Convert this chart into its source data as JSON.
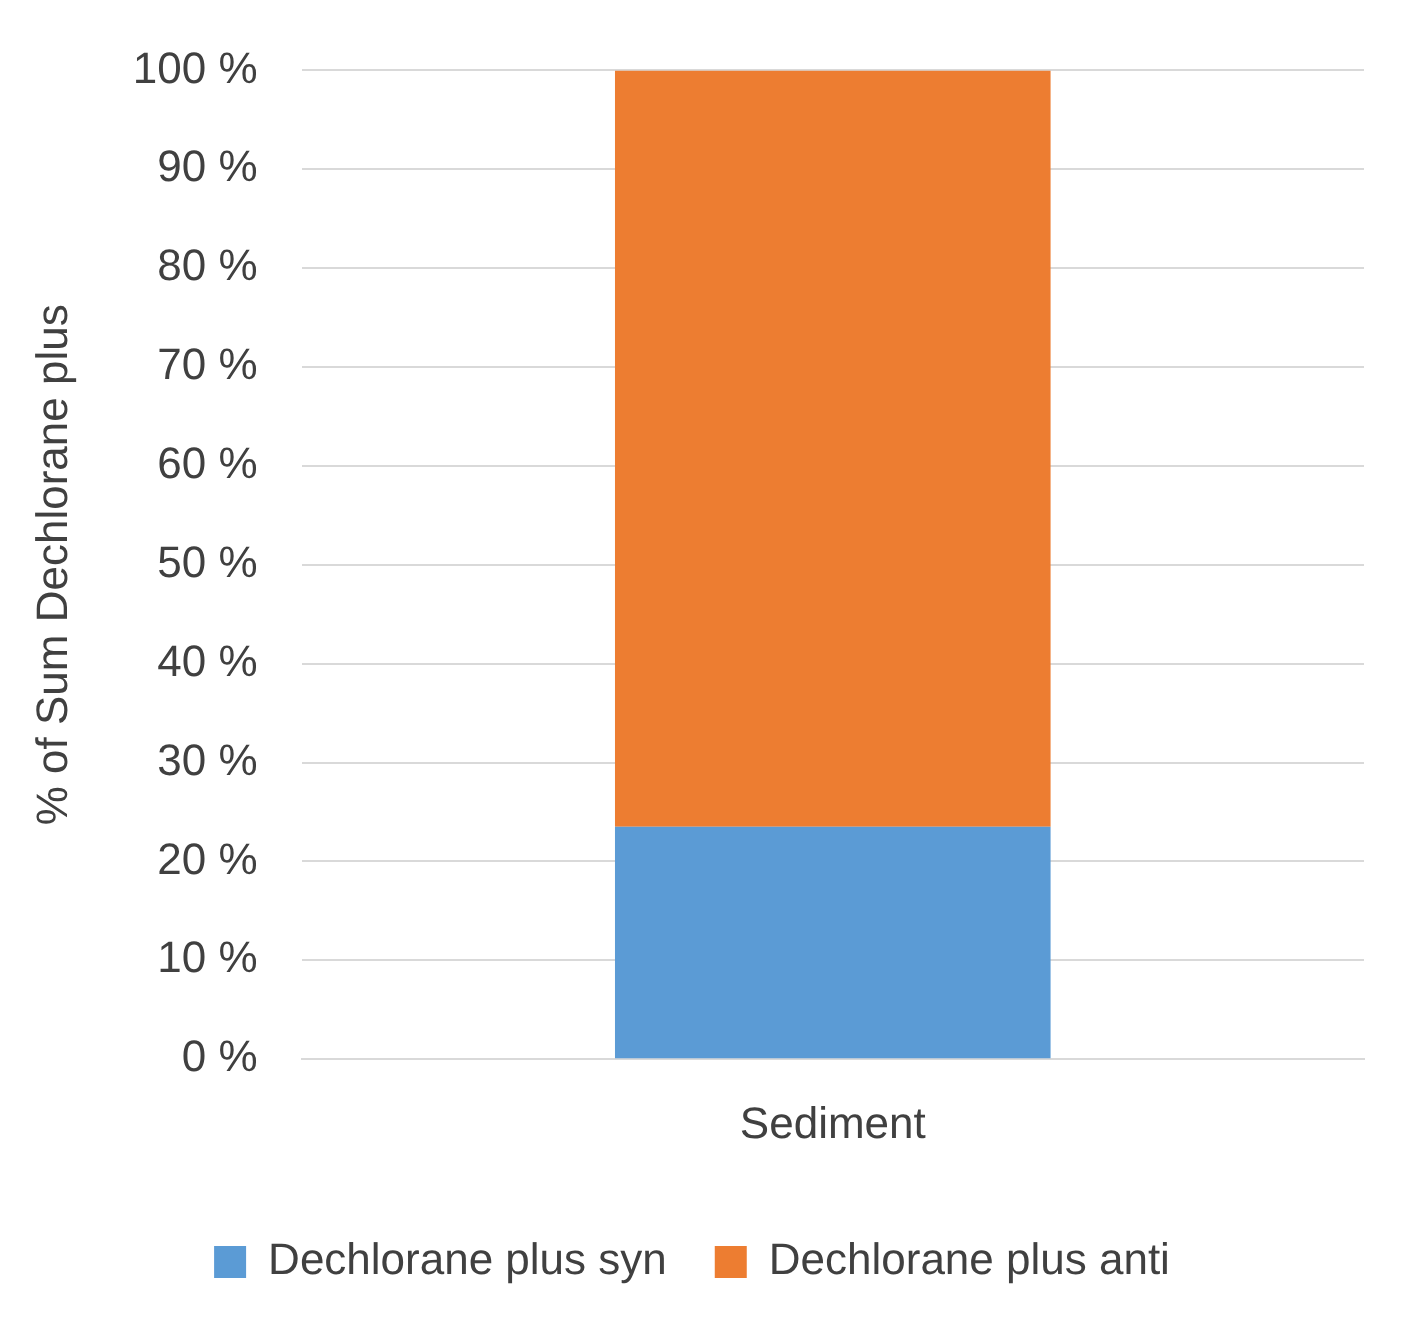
{
  "chart_data": {
    "type": "bar",
    "stacked": true,
    "ylabel": "% of Sum Dechlorane plus",
    "categories": [
      "Sediment"
    ],
    "series": [
      {
        "name": "Dechlorane plus syn",
        "color": "#5b9bd5",
        "values": [
          23.5
        ]
      },
      {
        "name": "Dechlorane plus anti",
        "color": "#ed7d31",
        "values": [
          76.5
        ]
      }
    ],
    "ylim": [
      0,
      100
    ],
    "yticks": [
      {
        "value": 0,
        "label": "0 %"
      },
      {
        "value": 10,
        "label": "10 %"
      },
      {
        "value": 20,
        "label": "20 %"
      },
      {
        "value": 30,
        "label": "30 %"
      },
      {
        "value": 40,
        "label": "40 %"
      },
      {
        "value": 50,
        "label": "50 %"
      },
      {
        "value": 60,
        "label": "60 %"
      },
      {
        "value": 70,
        "label": "70 %"
      },
      {
        "value": 80,
        "label": "80 %"
      },
      {
        "value": 90,
        "label": "90 %"
      },
      {
        "value": 100,
        "label": "100 %"
      }
    ],
    "grid": "y",
    "legend": "bottom"
  }
}
